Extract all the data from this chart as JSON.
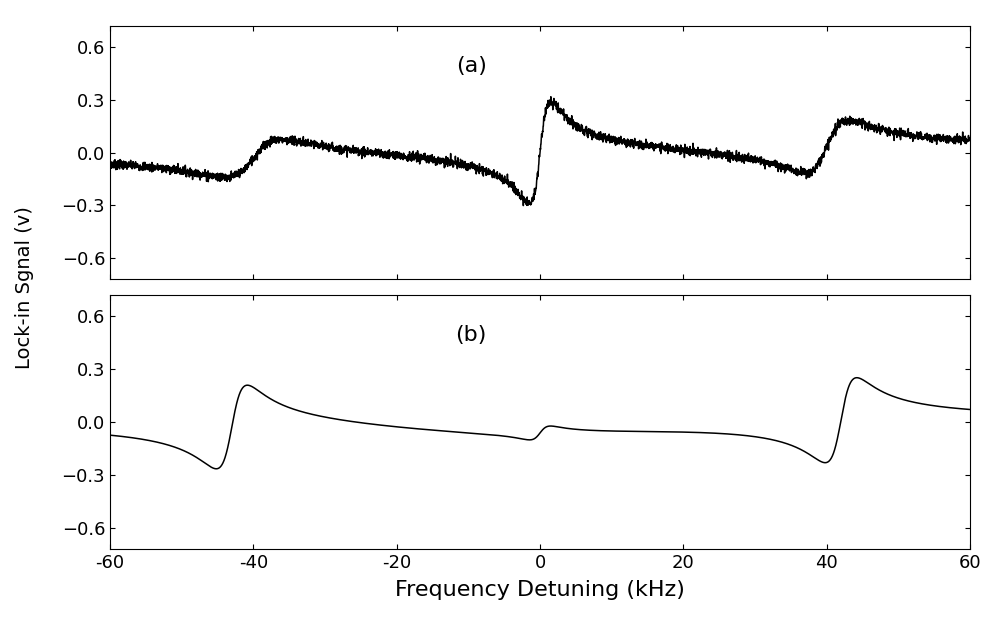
{
  "xlim": [
    -60,
    60
  ],
  "ylim": [
    -0.72,
    0.72
  ],
  "yticks": [
    -0.6,
    -0.3,
    0.0,
    0.3,
    0.6
  ],
  "xticks": [
    -60,
    -40,
    -20,
    0,
    20,
    40,
    60
  ],
  "xlabel": "Frequency Detuning (kHz)",
  "ylabel": "Lock-in Sgnal (v)",
  "label_a": "(a)",
  "label_b": "(b)",
  "line_color": "#000000",
  "line_width": 1.1,
  "background_color": "#ffffff",
  "noise_amplitude": 0.013,
  "noise_seed": 7
}
